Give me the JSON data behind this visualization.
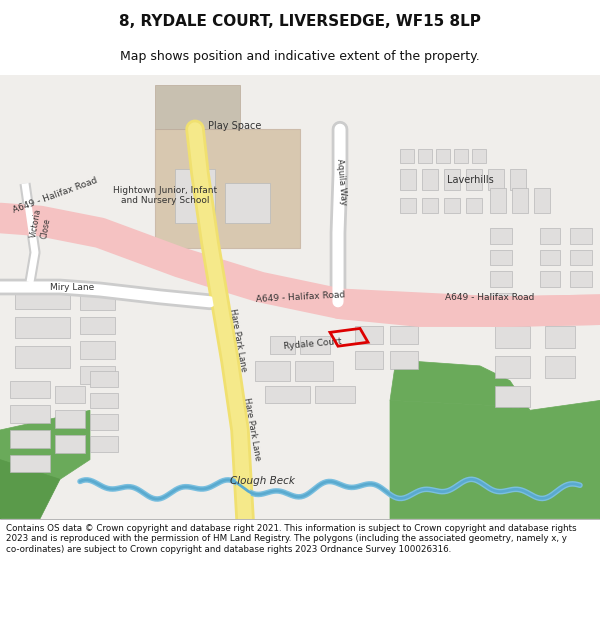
{
  "title": "8, RYDALE COURT, LIVERSEDGE, WF15 8LP",
  "subtitle": "Map shows position and indicative extent of the property.",
  "footer": "Contains OS data © Crown copyright and database right 2021. This information is subject to Crown copyright and database rights 2023 and is reproduced with the permission of HM Land Registry. The polygons (including the associated geometry, namely x, y co-ordinates) are subject to Crown copyright and database rights 2023 Ordnance Survey 100026316.",
  "bg_color": "#f8f8f8",
  "map_bg": "#ffffff",
  "road_pink": "#f5c2c2",
  "road_yellow": "#f5e98a",
  "road_outline": "#d4b84a",
  "building_fill": "#e0dedd",
  "building_outline": "#b8b8b8",
  "green_fill": "#6aaa5a",
  "water_blue": "#80c8e8",
  "text_color": "#333333",
  "red_outline": "#dd0000",
  "school_fill": "#d8c8b0",
  "playspace_fill": "#c8c0b0"
}
